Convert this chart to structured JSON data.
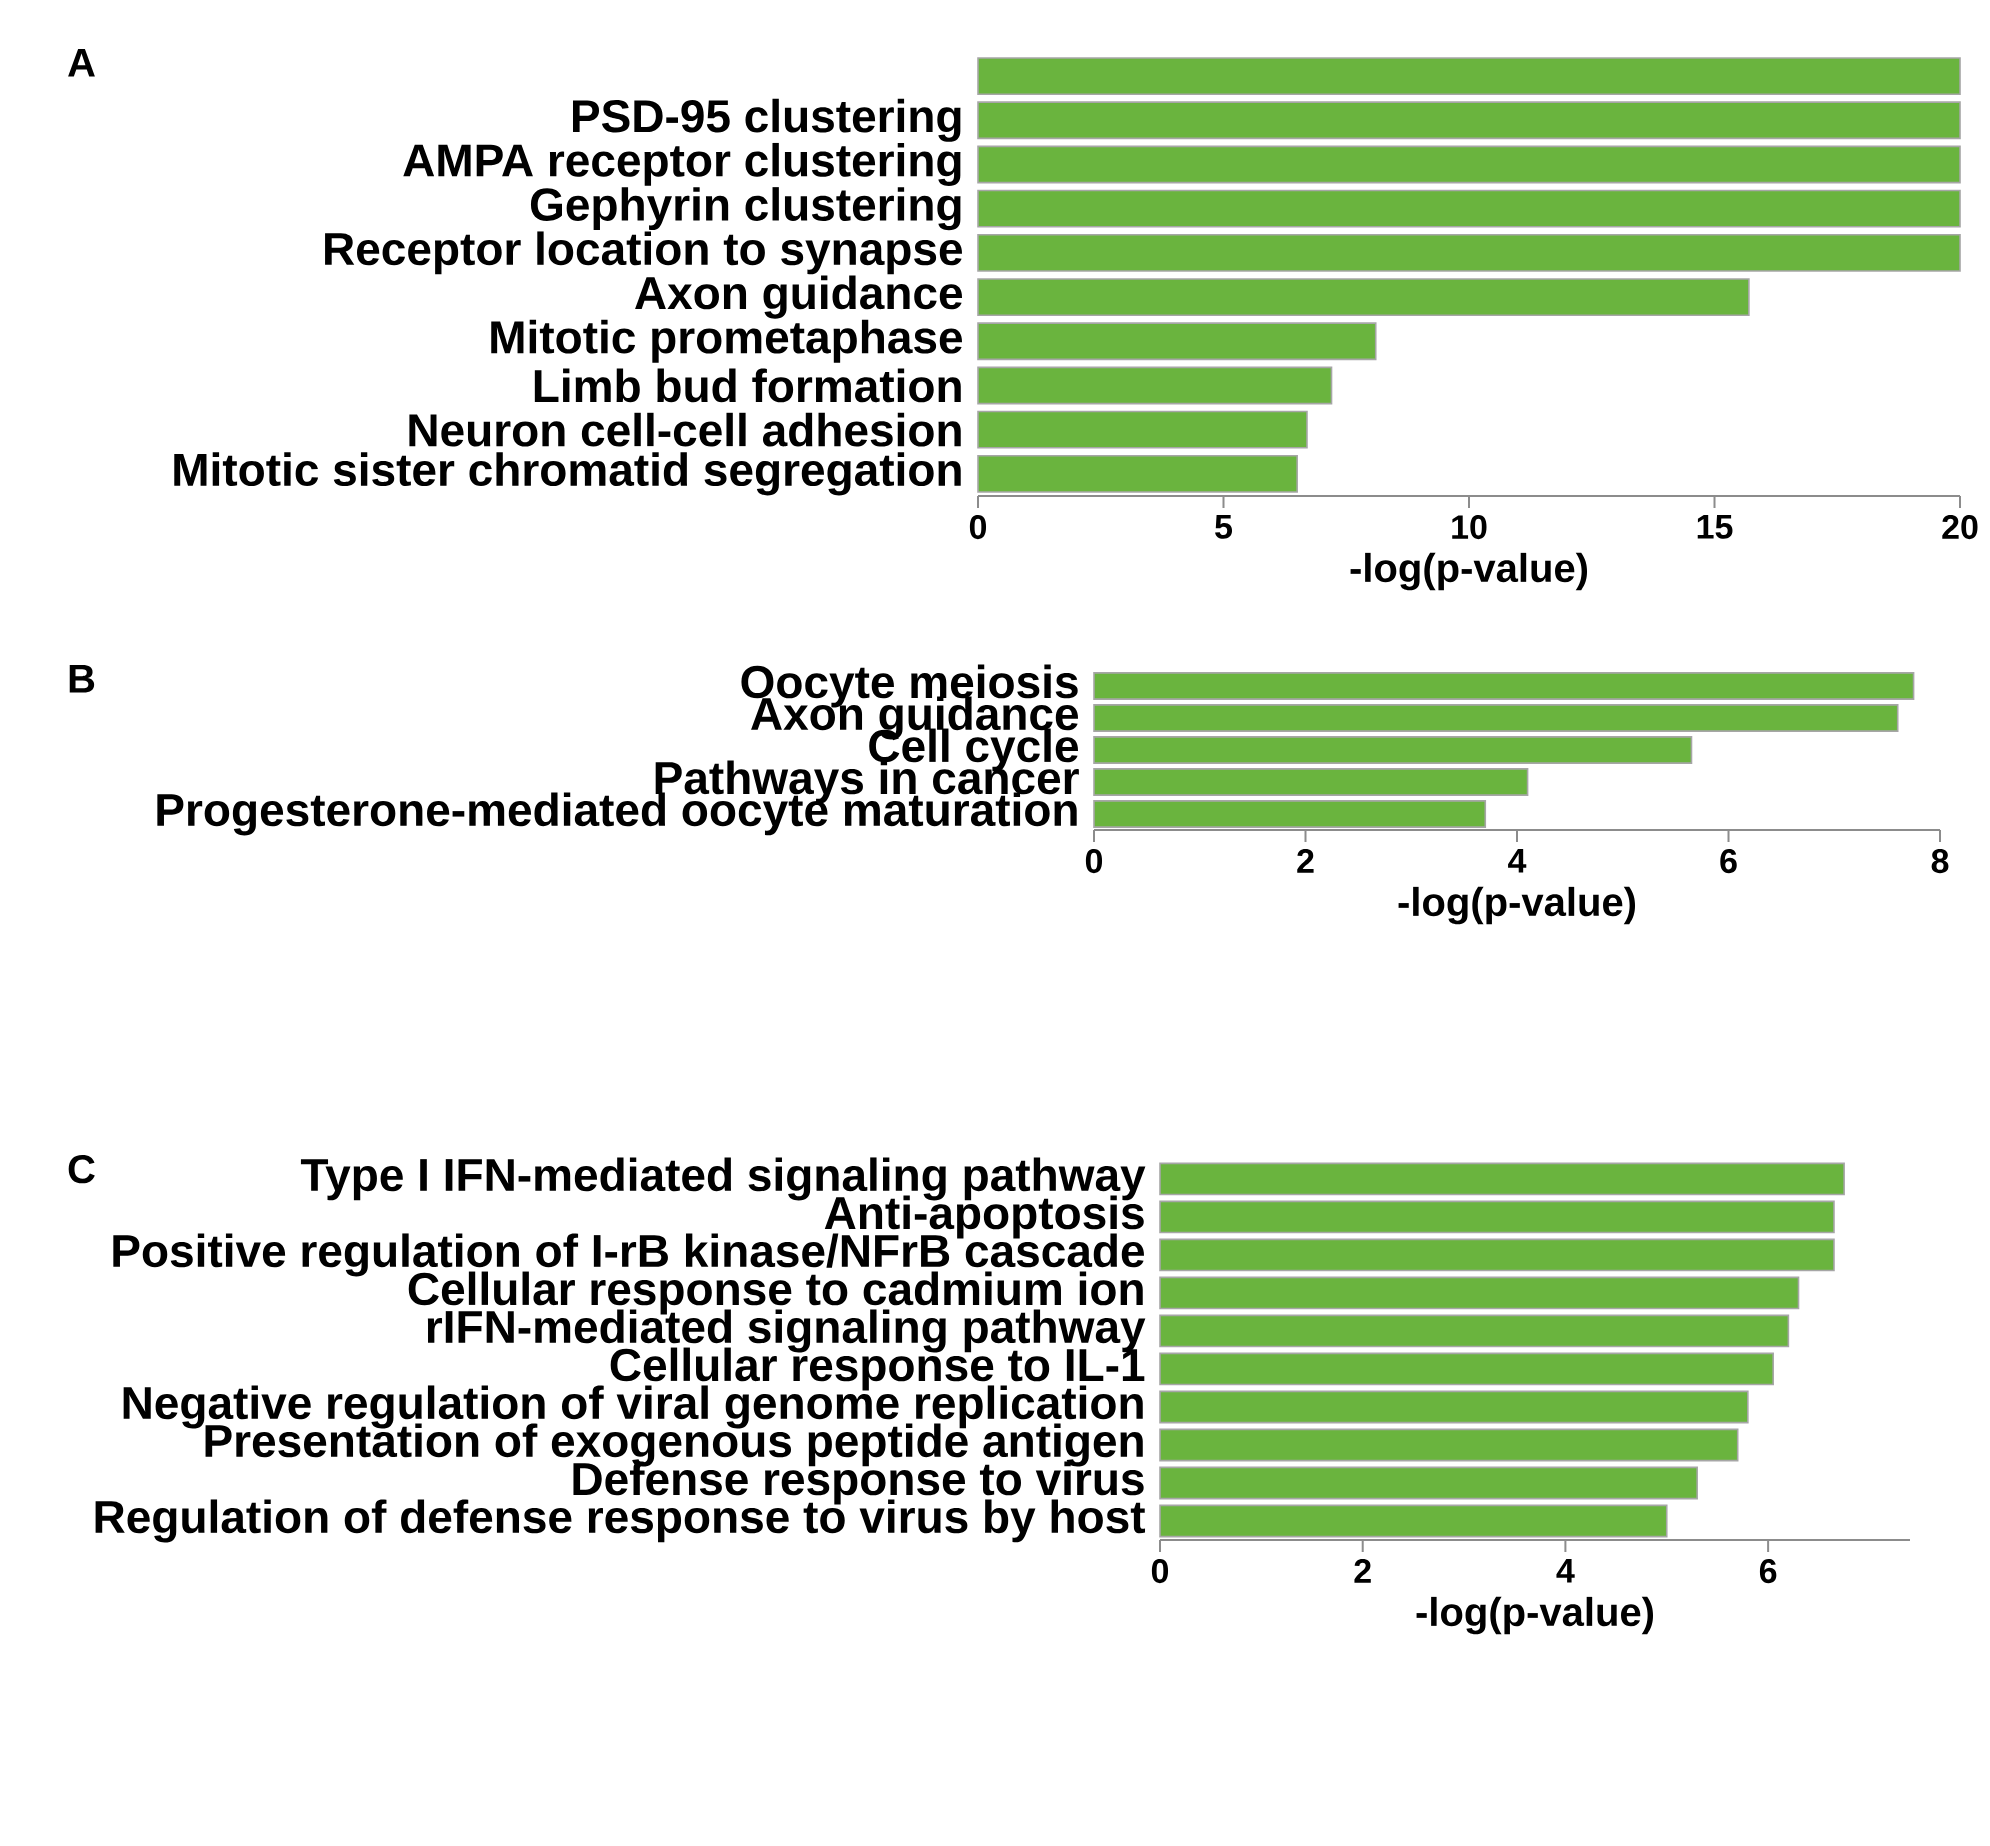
{
  "chart_data": [
    {
      "type": "bar",
      "orientation": "horizontal",
      "title": "A",
      "xlabel": "-log(p-value)",
      "color": "#6ab43e",
      "categories": [
        null,
        "PSD-95 clustering",
        "AMPA receptor clustering",
        "Gephyrin clustering",
        "Receptor location to synapse",
        "Axon guidance",
        "Mitotic prometaphase",
        "Limb bud formation",
        "Neuron cell-cell adhesion",
        "Mitotic sister chromatid segregation"
      ],
      "values": [
        20,
        20,
        20,
        20,
        20,
        15.7,
        8.1,
        7.2,
        6.7,
        6.5
      ],
      "xlim": [
        0,
        20
      ],
      "xticks": [
        0,
        5,
        10,
        15,
        20
      ]
    },
    {
      "type": "bar",
      "orientation": "horizontal",
      "title": "B",
      "xlabel": "-log(p-value)",
      "color": "#6ab43e",
      "categories": [
        "Oocyte meiosis",
        "Axon guidance",
        "Cell cycle",
        "Pathways in cancer",
        "Progesterone-mediated oocyte maturation"
      ],
      "values": [
        7.75,
        7.6,
        5.65,
        4.1,
        3.7
      ],
      "xlim": [
        0,
        8
      ],
      "xticks": [
        0,
        2,
        4,
        6,
        8
      ]
    },
    {
      "type": "bar",
      "orientation": "horizontal",
      "title": "C",
      "xlabel": "-log(p-value)",
      "color": "#6ab43e",
      "categories": [
        "Type I IFN-mediated signaling pathway",
        "Anti-apoptosis",
        "Positive regulation of I-rB kinase/NFrB cascade",
        "Cellular response to cadmium ion",
        "rIFN-mediated signaling pathway",
        "Cellular response to IL-1",
        "Negative regulation of viral genome replication",
        "Presentation of exogenous peptide antigen",
        "Defense response to virus",
        "Regulation of defense response to virus by host"
      ],
      "values": [
        6.75,
        6.65,
        6.65,
        6.3,
        6.2,
        6.05,
        5.8,
        5.7,
        5.3,
        5.0
      ],
      "xlim": [
        0,
        7.4
      ],
      "xticks": [
        0,
        2,
        4,
        6
      ]
    }
  ]
}
